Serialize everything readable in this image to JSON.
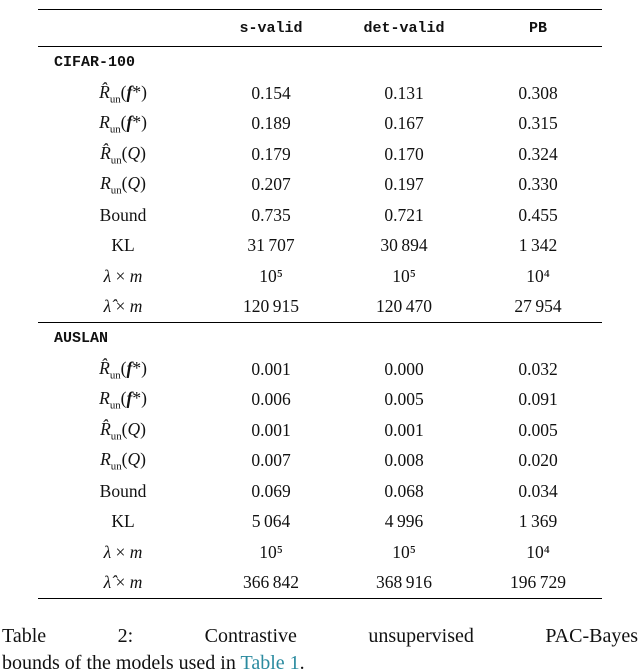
{
  "colors": {
    "link": "#2a8a9f",
    "text": "#111111",
    "rule": "#000000"
  },
  "table": {
    "columns": [
      "s-valid",
      "det-valid",
      "PB"
    ],
    "row_labels_html": [
      "<i>R̂</i><sub>un</sub>(<b><i>f</i></b>*)",
      "<i>R</i><sub>un</sub>(<b><i>f</i></b>*)",
      "<i>R̂</i><sub>un</sub>(<i>Q</i>)",
      "<i>R</i><sub>un</sub>(<i>Q</i>)",
      "Bound",
      "KL",
      "<i>λ</i> × <i>m</i>",
      "<i>λ̂</i> × <i>m</i>"
    ],
    "sections": [
      {
        "name": "CIFAR-100",
        "values": [
          [
            "0.154",
            "0.131",
            "0.308"
          ],
          [
            "0.189",
            "0.167",
            "0.315"
          ],
          [
            "0.179",
            "0.170",
            "0.324"
          ],
          [
            "0.207",
            "0.197",
            "0.330"
          ],
          [
            "0.735",
            "0.721",
            "0.455"
          ],
          [
            "31 707",
            "30 894",
            "1 342"
          ],
          [
            "10⁵",
            "10⁵",
            "10⁴"
          ],
          [
            "120 915",
            "120 470",
            "27 954"
          ]
        ]
      },
      {
        "name": "AUSLAN",
        "values": [
          [
            "0.001",
            "0.000",
            "0.032"
          ],
          [
            "0.006",
            "0.005",
            "0.091"
          ],
          [
            "0.001",
            "0.001",
            "0.005"
          ],
          [
            "0.007",
            "0.008",
            "0.020"
          ],
          [
            "0.069",
            "0.068",
            "0.034"
          ],
          [
            "5 064",
            "4 996",
            "1 369"
          ],
          [
            "10⁵",
            "10⁵",
            "10⁴"
          ],
          [
            "366 842",
            "368 916",
            "196 729"
          ]
        ]
      }
    ]
  },
  "caption": {
    "line1": "Table 2: Contrastive unsupervised PAC-Bayes",
    "line2_before": "bounds of the models used in ",
    "link_text": "Table 1",
    "line2_after": "."
  }
}
